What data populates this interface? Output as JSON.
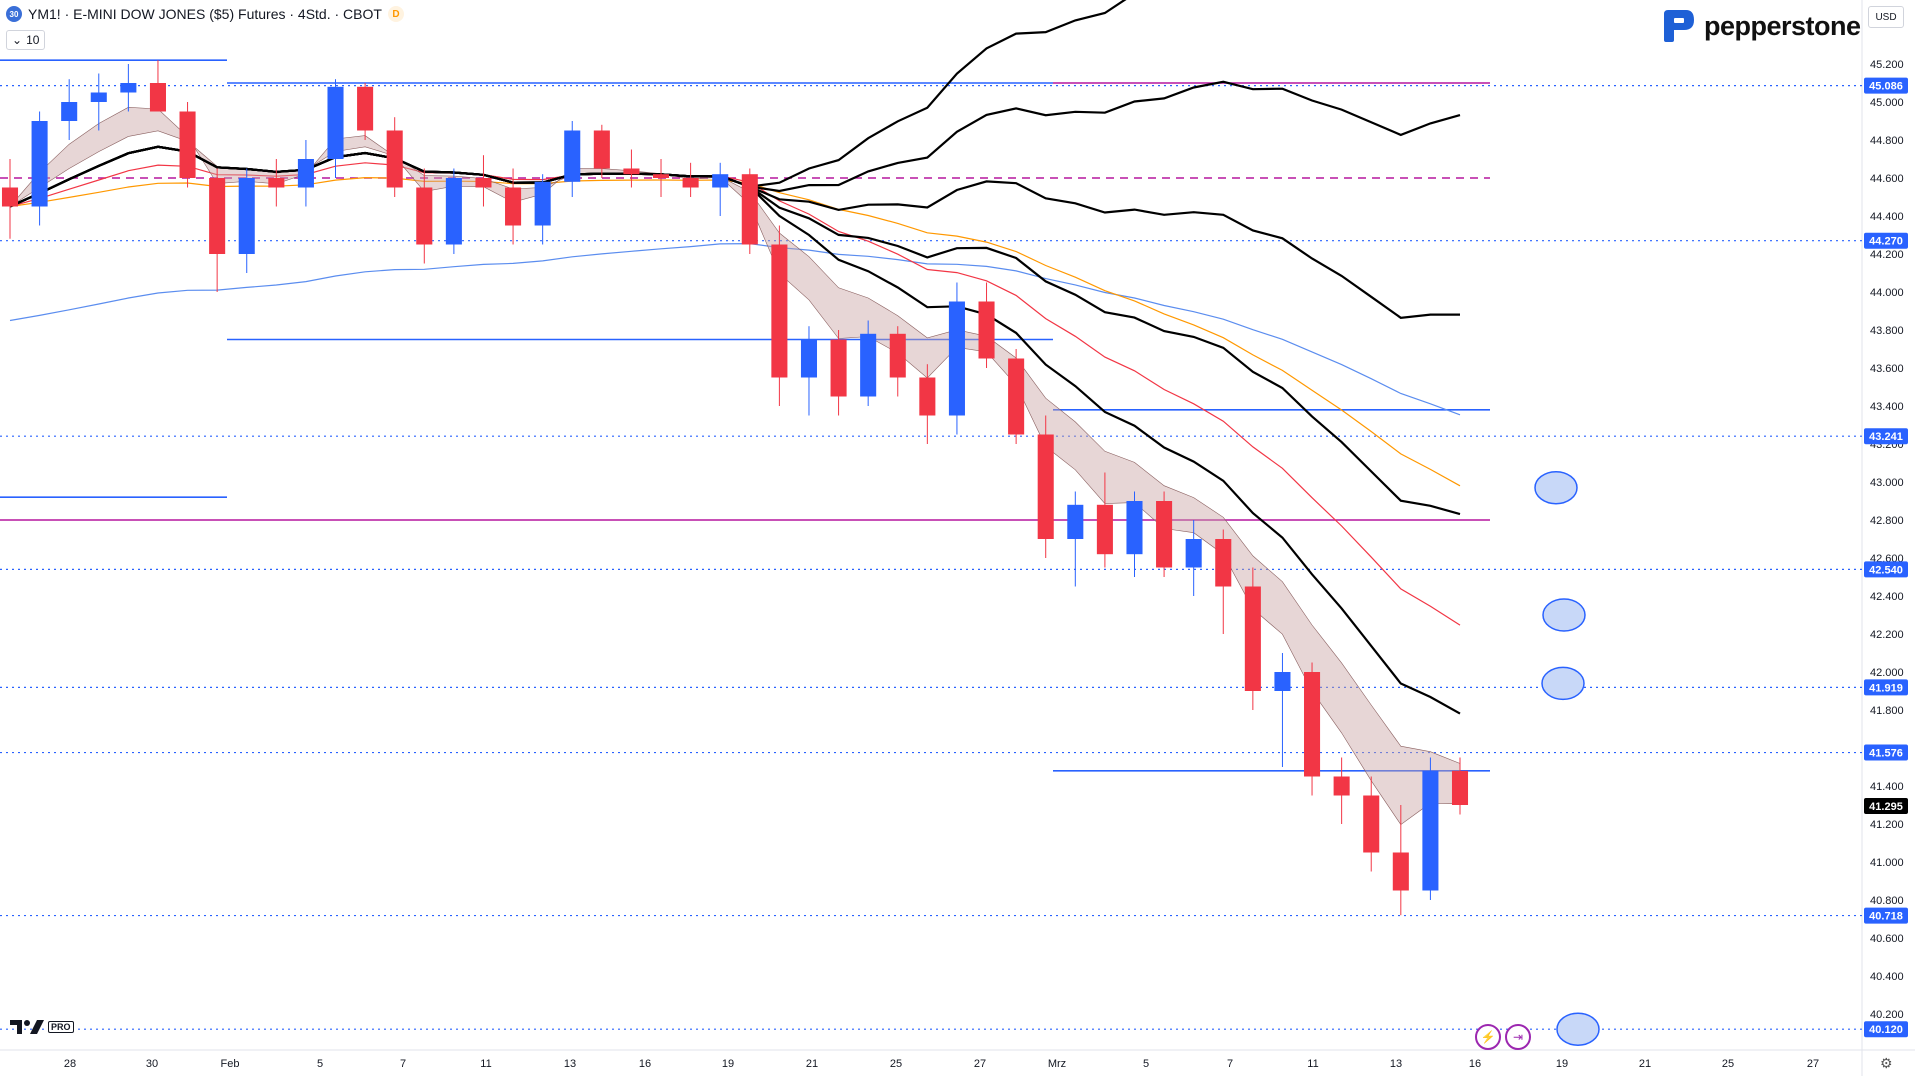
{
  "header": {
    "symbol_badge": "30",
    "title": "YM1! · E-MINI DOW JONES ($5) Futures · 4Std. · CBOT",
    "market_badge": "D",
    "volume_setting": "10"
  },
  "brand": {
    "name": "pepperstone"
  },
  "currency": "USD",
  "footer": {
    "tv_pro_label": "PRO"
  },
  "icons": [
    "chevron-down-icon",
    "tradingview-logo-icon",
    "pepperstone-logo-icon",
    "settings-gear-icon",
    "flash-icon",
    "forward-icon"
  ],
  "colors": {
    "bull": "#2962ff",
    "bear": "#f23645",
    "hline": "#2962ff",
    "magenta": "#b5179e",
    "ema_black": "#000000",
    "ema_red": "#f23645",
    "ema_orange": "#ff9800",
    "ema_blue": "#5b8def",
    "cloud": "#c9a4a4",
    "price_badge": "#2962ff"
  },
  "chart_data": {
    "type": "candlestick",
    "title": "YM1! · E-MINI DOW JONES ($5) Futures · 4Std. · CBOT",
    "y_axis": {
      "ylim": [
        40.0,
        45.3
      ],
      "ticks": [
        "45.200",
        "45.000",
        "44.800",
        "44.600",
        "44.400",
        "44.200",
        "44.000",
        "43.800",
        "43.600",
        "43.400",
        "43.200",
        "43.000",
        "42.800",
        "42.600",
        "42.400",
        "42.200",
        "42.000",
        "41.800",
        "41.600",
        "41.400",
        "41.200",
        "41.000",
        "40.800",
        "40.600",
        "40.400",
        "40.200"
      ]
    },
    "x_axis": {
      "tick_labels": [
        "28",
        "30",
        "Feb",
        "5",
        "7",
        "11",
        "13",
        "16",
        "19",
        "21",
        "25",
        "27",
        "Mrz",
        "5",
        "7",
        "11",
        "13",
        "16",
        "19",
        "21",
        "25",
        "27"
      ]
    },
    "ohlc_sketch": [
      [
        44.55,
        44.7,
        44.28,
        44.45
      ],
      [
        44.45,
        44.95,
        44.35,
        44.9
      ],
      [
        44.9,
        45.12,
        44.8,
        45.0
      ],
      [
        45.0,
        45.15,
        44.85,
        45.05
      ],
      [
        45.05,
        45.2,
        44.95,
        45.1
      ],
      [
        45.1,
        45.22,
        44.95,
        44.95
      ],
      [
        44.95,
        45.0,
        44.55,
        44.6
      ],
      [
        44.6,
        44.65,
        44.0,
        44.2
      ],
      [
        44.2,
        44.65,
        44.1,
        44.6
      ],
      [
        44.6,
        44.7,
        44.45,
        44.55
      ],
      [
        44.55,
        44.8,
        44.45,
        44.7
      ],
      [
        44.7,
        45.12,
        44.6,
        45.08
      ],
      [
        45.08,
        45.1,
        44.8,
        44.85
      ],
      [
        44.85,
        44.92,
        44.5,
        44.55
      ],
      [
        44.55,
        44.65,
        44.15,
        44.25
      ],
      [
        44.25,
        44.65,
        44.2,
        44.6
      ],
      [
        44.6,
        44.72,
        44.45,
        44.55
      ],
      [
        44.55,
        44.65,
        44.25,
        44.35
      ],
      [
        44.35,
        44.62,
        44.25,
        44.58
      ],
      [
        44.58,
        44.9,
        44.5,
        44.85
      ],
      [
        44.85,
        44.88,
        44.6,
        44.65
      ],
      [
        44.65,
        44.75,
        44.55,
        44.62
      ],
      [
        44.62,
        44.7,
        44.5,
        44.6
      ],
      [
        44.6,
        44.68,
        44.5,
        44.55
      ],
      [
        44.55,
        44.68,
        44.4,
        44.62
      ],
      [
        44.62,
        44.65,
        44.2,
        44.25
      ],
      [
        44.25,
        44.35,
        43.4,
        43.55
      ],
      [
        43.55,
        43.82,
        43.35,
        43.75
      ],
      [
        43.75,
        43.8,
        43.35,
        43.45
      ],
      [
        43.45,
        43.85,
        43.4,
        43.78
      ],
      [
        43.78,
        43.82,
        43.45,
        43.55
      ],
      [
        43.55,
        43.62,
        43.2,
        43.35
      ],
      [
        43.35,
        44.05,
        43.25,
        43.95
      ],
      [
        43.95,
        44.05,
        43.6,
        43.65
      ],
      [
        43.65,
        43.7,
        43.2,
        43.25
      ],
      [
        43.25,
        43.35,
        42.6,
        42.7
      ],
      [
        42.7,
        42.95,
        42.45,
        42.88
      ],
      [
        42.88,
        43.05,
        42.55,
        42.62
      ],
      [
        42.62,
        42.95,
        42.5,
        42.9
      ],
      [
        42.9,
        42.95,
        42.5,
        42.55
      ],
      [
        42.55,
        42.8,
        42.4,
        42.7
      ],
      [
        42.7,
        42.75,
        42.2,
        42.45
      ],
      [
        42.45,
        42.55,
        41.8,
        41.9
      ],
      [
        41.9,
        42.1,
        41.5,
        42.0
      ],
      [
        42.0,
        42.05,
        41.35,
        41.45
      ],
      [
        41.45,
        41.55,
        41.2,
        41.35
      ],
      [
        41.35,
        41.45,
        40.95,
        41.05
      ],
      [
        41.05,
        41.3,
        40.72,
        40.85
      ],
      [
        40.85,
        41.55,
        40.8,
        41.48
      ],
      [
        41.48,
        41.55,
        41.25,
        41.3
      ]
    ],
    "horizontal_levels": [
      {
        "price": 45.086,
        "label": "45.086",
        "style": "dotted"
      },
      {
        "price": 44.27,
        "label": "44.270",
        "style": "dotted"
      },
      {
        "price": 43.241,
        "label": "43.241",
        "style": "dotted"
      },
      {
        "price": 42.54,
        "label": "42.540",
        "style": "dotted"
      },
      {
        "price": 41.919,
        "label": "41.919",
        "style": "dotted"
      },
      {
        "price": 41.576,
        "label": "41.576",
        "style": "dotted"
      },
      {
        "price": 40.718,
        "label": "40.718",
        "style": "dotted"
      },
      {
        "price": 40.12,
        "label": "40.120",
        "style": "dotted"
      }
    ],
    "current_price": {
      "price": 41.295,
      "label": "41.295"
    },
    "drawn_lines": [
      {
        "kind": "blue",
        "price": 45.22,
        "from_date": "27",
        "to_date": "Feb-"
      },
      {
        "kind": "blue",
        "price": 45.1,
        "from_date": "Feb",
        "to_date": "Mrz"
      },
      {
        "kind": "magenta",
        "price": 45.1,
        "from_date": "Mrz",
        "to_date": "16"
      },
      {
        "kind": "blue",
        "price": 43.75,
        "from_date": "Feb",
        "to_date": "Mrz"
      },
      {
        "kind": "blue",
        "price": 43.38,
        "from_date": "Mrz",
        "to_date": "16"
      },
      {
        "kind": "blue",
        "price": 42.92,
        "from_date": "start",
        "to_date": "Feb"
      },
      {
        "kind": "magenta",
        "price": 42.8,
        "from_date": "start",
        "to_date": "16"
      },
      {
        "kind": "blue",
        "price": 41.48,
        "from_date": "Mrz",
        "to_date": "16"
      },
      {
        "kind": "magenta-dashed",
        "price": 44.6,
        "from_date": "start",
        "to_date": "16"
      }
    ],
    "markers": [
      {
        "price": 42.97,
        "shape": "ellipse"
      },
      {
        "price": 42.3,
        "shape": "ellipse"
      },
      {
        "price": 41.94,
        "shape": "ellipse"
      },
      {
        "price": 40.12,
        "shape": "ellipse"
      }
    ]
  }
}
